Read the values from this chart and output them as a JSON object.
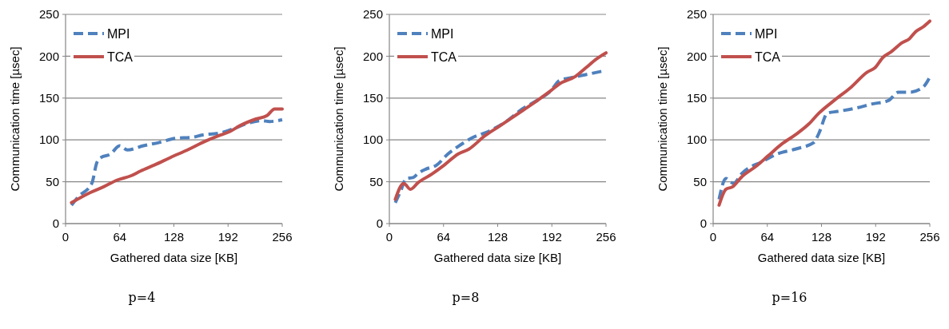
{
  "chart_data": [
    {
      "type": "line",
      "title": "p=4",
      "xlabel": "Gathered data size [KB]",
      "ylabel": "Communication time [µsec]",
      "xlim": [
        0,
        256
      ],
      "xticks": [
        0,
        64,
        128,
        192,
        256
      ],
      "ylim": [
        0,
        250
      ],
      "yticks": [
        0,
        50,
        100,
        150,
        200,
        250
      ],
      "grid": "y",
      "legend": "top left",
      "series": [
        {
          "name": "MPI",
          "color": "#4f81bd",
          "line_style": "dashed",
          "x": [
            7,
            15,
            31,
            37,
            42,
            53,
            64,
            73,
            92,
            111,
            130,
            149,
            162,
            181,
            200,
            219,
            232,
            241,
            256
          ],
          "values": [
            22,
            32,
            48,
            73,
            79,
            83,
            93,
            88,
            93,
            97,
            102,
            103,
            106,
            108,
            114,
            121,
            123,
            122,
            124
          ]
        },
        {
          "name": "TCA",
          "color": "#c0504d",
          "line_style": "solid",
          "x": [
            7,
            29,
            45,
            61,
            77,
            89,
            105,
            124,
            146,
            162,
            181,
            194,
            206,
            225,
            238,
            247,
            256
          ],
          "values": [
            25,
            37,
            44,
            52,
            57,
            63,
            70,
            79,
            89,
            97,
            105,
            110,
            117,
            125,
            129,
            137,
            137
          ]
        }
      ]
    },
    {
      "type": "line",
      "title": "p=8",
      "xlabel": "Gathered data size [KB]",
      "ylabel": "Communication time [µsec]",
      "xlim": [
        0,
        256
      ],
      "xticks": [
        0,
        64,
        128,
        192,
        256
      ],
      "ylim": [
        0,
        250
      ],
      "yticks": [
        0,
        50,
        100,
        150,
        200,
        250
      ],
      "grid": "y",
      "legend": "top left",
      "series": [
        {
          "name": "MPI",
          "color": "#4f81bd",
          "line_style": "dashed",
          "x": [
            7,
            13,
            20,
            28,
            34,
            43,
            56,
            69,
            81,
            97,
            119,
            138,
            157,
            176,
            191,
            201,
            213,
            232,
            256
          ],
          "values": [
            25,
            38,
            54,
            55,
            60,
            65,
            70,
            83,
            92,
            102,
            111,
            122,
            137,
            148,
            159,
            171,
            174,
            178,
            183
          ]
        },
        {
          "name": "TCA",
          "color": "#c0504d",
          "line_style": "solid",
          "x": [
            7,
            17,
            25,
            34,
            50,
            65,
            81,
            94,
            113,
            131,
            150,
            169,
            191,
            201,
            220,
            232,
            245,
            256
          ],
          "values": [
            29,
            48,
            41,
            49,
            59,
            70,
            83,
            89,
            105,
            117,
            130,
            143,
            159,
            167,
            176,
            186,
            197,
            204
          ]
        }
      ]
    },
    {
      "type": "line",
      "title": "p=16",
      "xlabel": "Gathered data size [KB]",
      "ylabel": "Communication time [µsec]",
      "xlim": [
        0,
        256
      ],
      "xticks": [
        0,
        64,
        128,
        192,
        256
      ],
      "ylim": [
        0,
        250
      ],
      "yticks": [
        0,
        50,
        100,
        150,
        200,
        250
      ],
      "grid": "y",
      "legend": "top left",
      "series": [
        {
          "name": "MPI",
          "color": "#4f81bd",
          "line_style": "dashed",
          "x": [
            7,
            15,
            24,
            34,
            43,
            56,
            75,
            97,
            119,
            125,
            135,
            147,
            169,
            188,
            207,
            219,
            232,
            248,
            256
          ],
          "values": [
            29,
            54,
            48,
            60,
            67,
            73,
            83,
            89,
            97,
            108,
            132,
            134,
            138,
            143,
            147,
            157,
            157,
            163,
            175
          ]
        },
        {
          "name": "TCA",
          "color": "#c0504d",
          "line_style": "solid",
          "x": [
            7,
            15,
            23,
            34,
            50,
            65,
            81,
            97,
            113,
            125,
            144,
            163,
            182,
            191,
            201,
            210,
            223,
            232,
            239,
            248,
            256
          ],
          "values": [
            22,
            41,
            44,
            56,
            68,
            81,
            95,
            106,
            119,
            132,
            148,
            163,
            181,
            186,
            199,
            205,
            216,
            221,
            229,
            235,
            242
          ]
        }
      ]
    }
  ]
}
